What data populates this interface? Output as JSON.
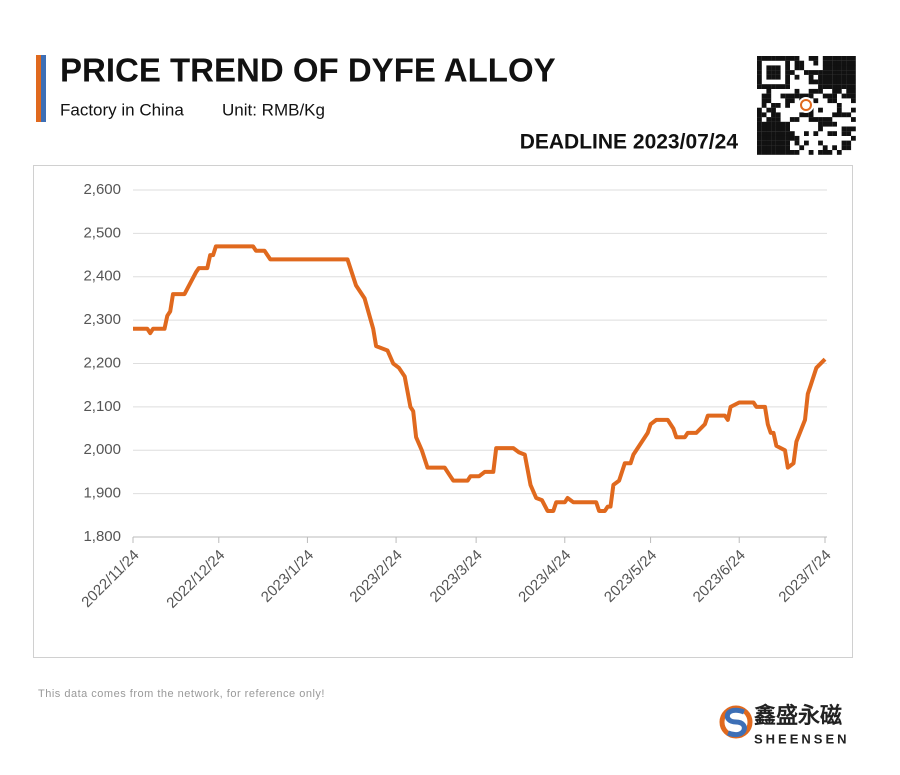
{
  "header": {
    "title": "PRICE TREND OF DYFE ALLOY",
    "subtitle": "Factory in China",
    "unit": "Unit: RMB/Kg",
    "deadline": "DEADLINE 2023/07/24"
  },
  "footer": {
    "note": "This data comes from the network, for reference only!",
    "brand_cn": "鑫盛永磁",
    "brand_en": "SHEENSEN"
  },
  "chart_data": {
    "type": "line",
    "x": [
      "2022/11/24",
      "2022/11/29",
      "2022/11/30",
      "2022/12/1",
      "2022/12/5",
      "2022/12/6",
      "2022/12/7",
      "2022/12/8",
      "2022/12/12",
      "2022/12/16",
      "2022/12/17",
      "2022/12/20",
      "2022/12/21",
      "2022/12/22",
      "2022/12/23",
      "2023/1/5",
      "2023/1/6",
      "2023/1/9",
      "2023/1/11",
      "2023/2/7",
      "2023/2/10",
      "2023/2/13",
      "2023/2/16",
      "2023/2/17",
      "2023/2/21",
      "2023/2/23",
      "2023/2/25",
      "2023/2/27",
      "2023/3/1",
      "2023/3/2",
      "2023/3/3",
      "2023/3/5",
      "2023/3/7",
      "2023/3/13",
      "2023/3/15",
      "2023/3/16",
      "2023/3/21",
      "2023/3/22",
      "2023/3/25",
      "2023/3/27",
      "2023/3/30",
      "2023/3/31",
      "2023/4/6",
      "2023/4/8",
      "2023/4/10",
      "2023/4/12",
      "2023/4/14",
      "2023/4/16",
      "2023/4/18",
      "2023/4/20",
      "2023/4/21",
      "2023/4/24",
      "2023/4/25",
      "2023/4/27",
      "2023/5/5",
      "2023/5/6",
      "2023/5/8",
      "2023/5/9",
      "2023/5/10",
      "2023/5/11",
      "2023/5/13",
      "2023/5/15",
      "2023/5/17",
      "2023/5/18",
      "2023/5/23",
      "2023/5/24",
      "2023/5/26",
      "2023/5/30",
      "2023/6/1",
      "2023/6/2",
      "2023/6/5",
      "2023/6/6",
      "2023/6/9",
      "2023/6/12",
      "2023/6/13",
      "2023/6/19",
      "2023/6/20",
      "2023/6/21",
      "2023/6/24",
      "2023/6/29",
      "2023/6/30",
      "2023/7/3",
      "2023/7/4",
      "2023/7/5",
      "2023/7/6",
      "2023/7/7",
      "2023/7/10",
      "2023/7/11",
      "2023/7/13",
      "2023/7/14",
      "2023/7/17",
      "2023/7/18",
      "2023/7/19",
      "2023/7/21",
      "2023/7/24"
    ],
    "series": [
      {
        "name": "DyFe",
        "color": "#e0691e",
        "values": [
          2280,
          2280,
          2270,
          2280,
          2280,
          2310,
          2320,
          2360,
          2360,
          2410,
          2420,
          2420,
          2450,
          2450,
          2470,
          2470,
          2460,
          2460,
          2440,
          2440,
          2380,
          2350,
          2280,
          2240,
          2230,
          2200,
          2190,
          2170,
          2100,
          2090,
          2030,
          2000,
          1960,
          1960,
          1940,
          1930,
          1930,
          1940,
          1940,
          1950,
          1950,
          2005,
          2005,
          1995,
          1990,
          1920,
          1890,
          1885,
          1860,
          1860,
          1880,
          1880,
          1890,
          1880,
          1880,
          1860,
          1860,
          1870,
          1870,
          1920,
          1930,
          1970,
          1970,
          1990,
          2040,
          2060,
          2070,
          2070,
          2050,
          2030,
          2030,
          2040,
          2040,
          2060,
          2080,
          2080,
          2070,
          2100,
          2110,
          2110,
          2100,
          2100,
          2060,
          2040,
          2040,
          2010,
          2000,
          1960,
          1970,
          2020,
          2070,
          2130,
          2150,
          2190,
          2210
        ]
      }
    ],
    "xlim": [
      "2022/11/24",
      "2023/7/24"
    ],
    "xticks": [
      "2022/11/24",
      "2022/12/24",
      "2023/1/24",
      "2023/2/24",
      "2023/3/24",
      "2023/4/24",
      "2023/5/24",
      "2023/6/24",
      "2023/7/24"
    ],
    "ylim": [
      1800,
      2600
    ],
    "yticks": [
      {
        "value": 1800,
        "label": "1,800"
      },
      {
        "value": 1900,
        "label": "1,900"
      },
      {
        "value": 2000,
        "label": "2,000"
      },
      {
        "value": 2100,
        "label": "2,100"
      },
      {
        "value": 2200,
        "label": "2,200"
      },
      {
        "value": 2300,
        "label": "2,300"
      },
      {
        "value": 2400,
        "label": "2,400"
      },
      {
        "value": 2500,
        "label": "2,500"
      },
      {
        "value": 2600,
        "label": "2,600"
      }
    ],
    "grid": true
  }
}
